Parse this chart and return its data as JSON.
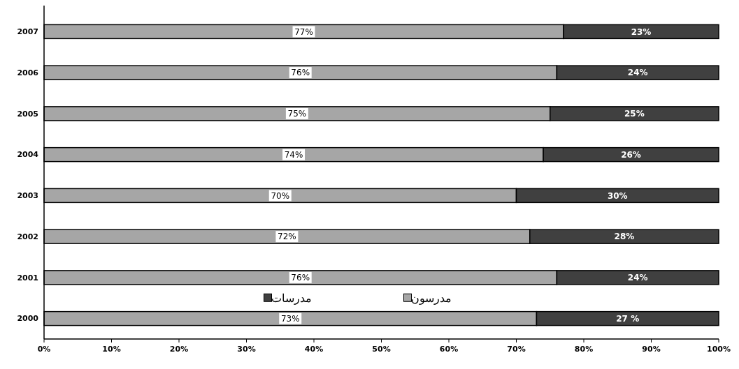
{
  "chart_data": {
    "type": "bar",
    "orientation": "horizontal",
    "stacked": true,
    "categories": [
      "2007",
      "2006",
      "2005",
      "2004",
      "2003",
      "2002",
      "2001",
      "2000"
    ],
    "series": [
      {
        "name": "مدرسون",
        "color": "#a6a6a6",
        "values": [
          77,
          76,
          75,
          74,
          70,
          72,
          76,
          73
        ],
        "value_labels": [
          "77%",
          "76%",
          "75%",
          "74%",
          "70%",
          "72%",
          "76%",
          "73%"
        ]
      },
      {
        "name": "مدرسات",
        "color": "#404040",
        "values": [
          23,
          24,
          25,
          26,
          30,
          28,
          24,
          27
        ],
        "value_labels": [
          "23%",
          "24%",
          "25%",
          "26%",
          "30%",
          "28%",
          "24%",
          "27 %"
        ]
      }
    ],
    "xlim": [
      0,
      100
    ],
    "xticks": [
      {
        "value": 0,
        "label": "0%"
      },
      {
        "value": 10,
        "label": "10%"
      },
      {
        "value": 20,
        "label": "20%"
      },
      {
        "value": 30,
        "label": "30%"
      },
      {
        "value": 40,
        "label": "40%"
      },
      {
        "value": 50,
        "label": "50%"
      },
      {
        "value": 60,
        "label": "60%"
      },
      {
        "value": 70,
        "label": "70%"
      },
      {
        "value": 80,
        "label": "80%"
      },
      {
        "value": 90,
        "label": "90%"
      },
      {
        "value": 100,
        "label": "100%"
      }
    ],
    "legend": "bottom",
    "grid": false
  }
}
